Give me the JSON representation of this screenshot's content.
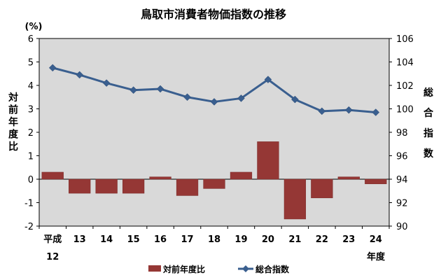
{
  "chart_data": {
    "type": "bar+line",
    "title": "鳥取市消費者物価指数の推移",
    "y_left_unit": "(%)",
    "y_left_label": "対前年度比",
    "y_right_label": "総合指数",
    "x_unit": "年度",
    "categories": [
      {
        "top": "平成",
        "bottom": "12"
      },
      {
        "top": "13"
      },
      {
        "top": "14"
      },
      {
        "top": "15"
      },
      {
        "top": "16"
      },
      {
        "top": "17"
      },
      {
        "top": "18"
      },
      {
        "top": "19"
      },
      {
        "top": "20"
      },
      {
        "top": "21"
      },
      {
        "top": "22"
      },
      {
        "top": "23"
      },
      {
        "top": "24"
      }
    ],
    "y_left": {
      "min": -2,
      "max": 6,
      "ticks": [
        "6",
        "5",
        "4",
        "3",
        "2",
        "1",
        "0",
        "-1",
        "-2"
      ]
    },
    "y_right": {
      "min": 90,
      "max": 106,
      "ticks": [
        "106",
        "104",
        "102",
        "100",
        "98",
        "96",
        "94",
        "92",
        "90"
      ]
    },
    "series": [
      {
        "name": "対前年度比",
        "type": "bar",
        "axis": "left",
        "color": "#953735",
        "values": [
          0.3,
          -0.6,
          -0.6,
          -0.6,
          0.1,
          -0.7,
          -0.4,
          0.3,
          1.6,
          -1.7,
          -0.8,
          0.1,
          -0.2
        ]
      },
      {
        "name": "総合指数",
        "type": "line",
        "axis": "right",
        "color": "#3a5f8f",
        "values": [
          103.5,
          102.9,
          102.2,
          101.6,
          101.7,
          101.0,
          100.6,
          100.9,
          102.5,
          100.8,
          99.8,
          99.9,
          99.7
        ]
      }
    ],
    "legend_position": "bottom",
    "grid": false
  }
}
